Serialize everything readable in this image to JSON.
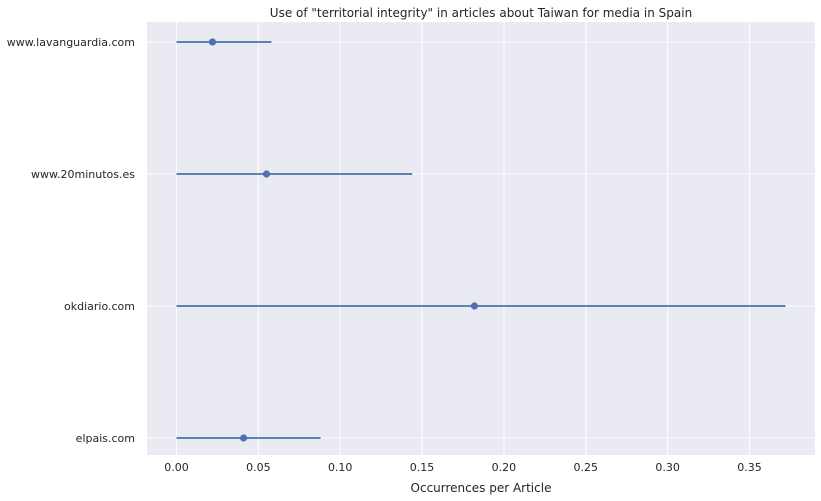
{
  "chart_data": {
    "type": "errorbar",
    "title": "Use of \"territorial integrity\" in articles about Taiwan for media in Spain",
    "xlabel": "Occurrences per Article",
    "ylabel": "",
    "xlim": [
      -0.018,
      0.39
    ],
    "xticks": [
      "0.00",
      "0.05",
      "0.10",
      "0.15",
      "0.20",
      "0.25",
      "0.30",
      "0.35"
    ],
    "xtick_values": [
      0.0,
      0.05,
      0.1,
      0.15,
      0.2,
      0.25,
      0.3,
      0.35
    ],
    "grid": true,
    "background_color": "#eaeaf2",
    "series_color": "#4c72b0",
    "categories": [
      "www.lavanguardia.com",
      "www.20minutos.es",
      "okdiario.com",
      "elpais.com"
    ],
    "values": [
      0.022,
      0.055,
      0.182,
      0.041
    ],
    "lower": [
      0.0,
      0.0,
      0.0,
      0.0
    ],
    "upper": [
      0.058,
      0.144,
      0.372,
      0.088
    ]
  }
}
